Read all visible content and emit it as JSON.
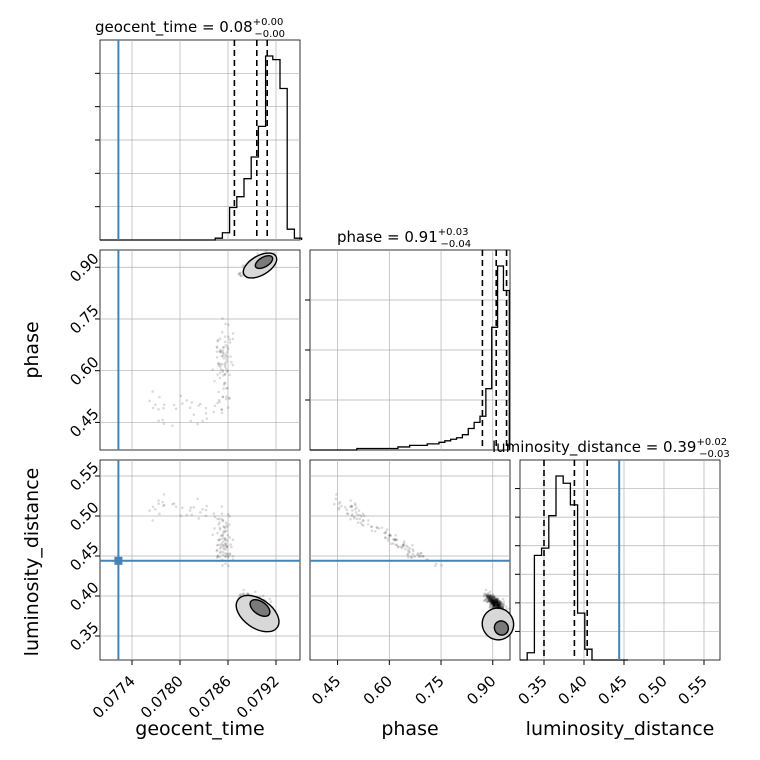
{
  "chart_data": {
    "type": "corner",
    "parameters": [
      "geocent_time",
      "phase",
      "luminosity_distance"
    ],
    "truths": [
      0.07723,
      null,
      0.444
    ],
    "truth_color": "#4682b4",
    "grid": true,
    "panels": [
      {
        "kind": "hist",
        "param": "geocent_time",
        "title": "geocent_time = 0.08",
        "title_sup": "+0.00",
        "title_sub": "−0.00",
        "xlim": [
          0.077,
          0.0795
        ],
        "xticks": [
          0.0774,
          0.078,
          0.0786,
          0.0792
        ],
        "bins": [
          0.077,
          0.07709,
          0.07718,
          0.07727,
          0.07736,
          0.07745,
          0.07754,
          0.07763,
          0.07772,
          0.07781,
          0.0779,
          0.07799,
          0.07808,
          0.07817,
          0.07826,
          0.07835,
          0.07844,
          0.07853,
          0.07862,
          0.07871,
          0.0788,
          0.07889,
          0.07898,
          0.07907,
          0.07916,
          0.07925,
          0.07934,
          0.07943,
          0.07952
        ],
        "counts": [
          0,
          0,
          0,
          0,
          0,
          0,
          0,
          0,
          0,
          0,
          0,
          0,
          0,
          0,
          0,
          0,
          1,
          4,
          18,
          24,
          34,
          46,
          63,
          102,
          100,
          84,
          6,
          1
        ],
        "quantiles": [
          0.07868,
          0.07896,
          0.07909
        ]
      },
      {
        "kind": "hist",
        "param": "phase",
        "title": "phase = 0.91",
        "title_sup": "+0.03",
        "title_sub": "−0.04",
        "xlim": [
          0.37,
          0.95
        ],
        "xticks": [
          0.45,
          0.6,
          0.75,
          0.9
        ],
        "bins": [
          0.37,
          0.387,
          0.404,
          0.421,
          0.438,
          0.455,
          0.472,
          0.489,
          0.506,
          0.523,
          0.54,
          0.557,
          0.574,
          0.591,
          0.608,
          0.625,
          0.642,
          0.659,
          0.676,
          0.693,
          0.71,
          0.727,
          0.744,
          0.761,
          0.778,
          0.795,
          0.812,
          0.829,
          0.846,
          0.863,
          0.88,
          0.897,
          0.914,
          0.931,
          0.948
        ],
        "counts": [
          0,
          0,
          0,
          0,
          0,
          0,
          0,
          0,
          1,
          1,
          1,
          1,
          1,
          1,
          1,
          2,
          2,
          3,
          3,
          3,
          4,
          4,
          5,
          6,
          7,
          8,
          10,
          14,
          18,
          22,
          40,
          80,
          120,
          104
        ],
        "quantiles": [
          0.87,
          0.91,
          0.94
        ]
      },
      {
        "kind": "hist",
        "param": "luminosity_distance",
        "title": "luminosity_distance = 0.39",
        "title_sup": "+0.02",
        "title_sub": "−0.03",
        "xlim": [
          0.32,
          0.57
        ],
        "xticks": [
          0.35,
          0.4,
          0.45,
          0.5,
          0.55
        ],
        "bins": [
          0.32,
          0.329,
          0.338,
          0.347,
          0.356,
          0.365,
          0.374,
          0.383,
          0.392,
          0.401,
          0.41,
          0.419,
          0.428,
          0.437,
          0.446,
          0.455
        ],
        "counts": [
          0,
          4,
          58,
          62,
          80,
          102,
          98,
          86,
          26,
          6,
          0,
          0,
          0,
          0,
          0
        ],
        "quantiles": [
          0.35,
          0.388,
          0.404
        ]
      },
      {
        "kind": "2d",
        "x": "geocent_time",
        "y": "phase",
        "xlim": [
          0.077,
          0.0795
        ],
        "ylim": [
          0.37,
          0.95
        ],
        "yticks": [
          0.45,
          0.6,
          0.75,
          0.9
        ]
      },
      {
        "kind": "2d",
        "x": "geocent_time",
        "y": "luminosity_distance",
        "xlim": [
          0.077,
          0.0795
        ],
        "ylim": [
          0.32,
          0.57
        ],
        "yticks": [
          0.35,
          0.4,
          0.45,
          0.5,
          0.55
        ]
      },
      {
        "kind": "2d",
        "x": "phase",
        "y": "luminosity_distance",
        "xlim": [
          0.37,
          0.95
        ],
        "ylim": [
          0.32,
          0.57
        ]
      }
    ],
    "xlabels": [
      "geocent_time",
      "phase",
      "luminosity_distance"
    ],
    "ylabels": [
      "phase",
      "luminosity_distance"
    ]
  }
}
